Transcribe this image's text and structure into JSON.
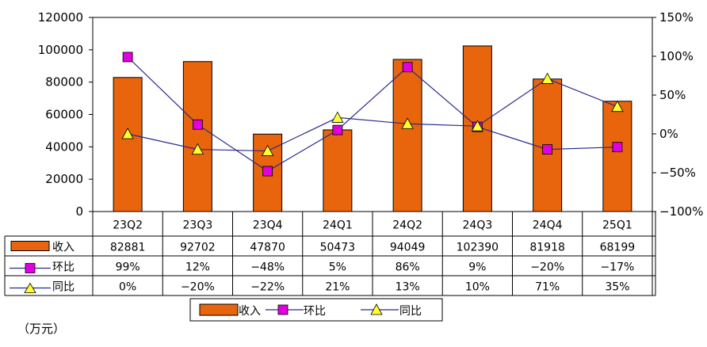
{
  "chart_data": {
    "type": "bar",
    "categories": [
      "23Q2",
      "23Q3",
      "23Q4",
      "24Q1",
      "24Q2",
      "24Q3",
      "24Q4",
      "25Q1"
    ],
    "y_left": {
      "ylim": [
        0,
        120000
      ],
      "ticks": [
        "0",
        "20000",
        "40000",
        "60000",
        "80000",
        "100000",
        "120000"
      ]
    },
    "y_right": {
      "ylim": [
        -100,
        150
      ],
      "ticks": [
        "-100%",
        "-50%",
        "0%",
        "50%",
        "100%",
        "150%"
      ]
    },
    "grid": false,
    "legend_position": "bottom-center",
    "series": [
      {
        "name": "收入",
        "kind": "bar",
        "axis": "left",
        "color": "#E8650E",
        "values": [
          82881,
          92702,
          47870,
          50473,
          94049,
          102390,
          81918,
          68199
        ],
        "labels": [
          "82881",
          "92702",
          "47870",
          "50473",
          "94049",
          "102390",
          "81918",
          "68199"
        ]
      },
      {
        "name": "环比",
        "kind": "line",
        "axis": "right",
        "color": "#2B2B8C",
        "marker": "square",
        "marker_color": "#E000E0",
        "values": [
          99,
          12,
          -48,
          5,
          86,
          9,
          -20,
          -17
        ],
        "labels": [
          "99%",
          "12%",
          "-48%",
          "5%",
          "86%",
          "9%",
          "-20%",
          "-17%"
        ]
      },
      {
        "name": "同比",
        "kind": "line",
        "axis": "right",
        "color": "#2B2B8C",
        "marker": "triangle",
        "marker_color": "#FFFF33",
        "values": [
          0,
          -20,
          -22,
          21,
          13,
          10,
          71,
          35
        ],
        "labels": [
          "0%",
          "-20%",
          "-22%",
          "21%",
          "13%",
          "10%",
          "71%",
          "35%"
        ]
      }
    ]
  },
  "unit_note": "（万元）"
}
